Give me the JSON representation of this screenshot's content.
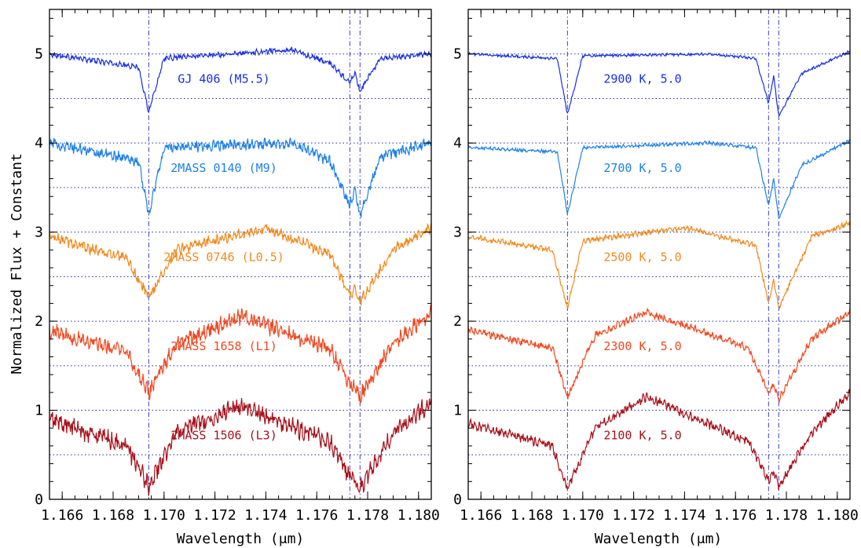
{
  "chart_data": [
    {
      "type": "line",
      "panel": "left",
      "xlabel": "Wavelength (μm)",
      "ylabel": "Normalized Flux + Constant",
      "xlim": [
        1.1655,
        1.1805
      ],
      "ylim": [
        0,
        5.5
      ],
      "xticks": [
        "1.166",
        "1.168",
        "1.170",
        "1.172",
        "1.174",
        "1.176",
        "1.178",
        "1.180"
      ],
      "yticks": [
        "0",
        "1",
        "2",
        "3",
        "4",
        "5"
      ],
      "grid": false,
      "reference_lines": {
        "vertical_dashdot_um": [
          1.1694,
          1.1773,
          1.1777
        ],
        "horizontal_dotted_levels": [
          0.5,
          1.0,
          1.5,
          2.0,
          2.5,
          3.0,
          3.5,
          4.0,
          4.5,
          5.0
        ]
      },
      "series": [
        {
          "name": "GJ 406 (M5.5)",
          "color": "#1a2fe0",
          "offset": 4.0,
          "continuum": 5.0,
          "noise": 0.03,
          "x": [
            1.1655,
            1.169,
            1.1694,
            1.17,
            1.175,
            1.1765,
            1.1773,
            1.1775,
            1.1777,
            1.1785,
            1.1805
          ],
          "y": [
            5.0,
            4.85,
            4.35,
            4.95,
            5.05,
            4.9,
            4.68,
            4.78,
            4.58,
            4.95,
            5.0
          ]
        },
        {
          "name": "2MASS 0140 (M9)",
          "color": "#1f80e8",
          "offset": 3.0,
          "continuum": 4.0,
          "noise": 0.06,
          "x": [
            1.1655,
            1.169,
            1.1694,
            1.17,
            1.175,
            1.1765,
            1.1773,
            1.1775,
            1.1777,
            1.1785,
            1.1805
          ],
          "y": [
            4.0,
            3.8,
            3.2,
            3.95,
            4.0,
            3.8,
            3.3,
            3.5,
            3.18,
            3.85,
            4.0
          ]
        },
        {
          "name": "2MASS 0746 (L0.5)",
          "color": "#f08a1e",
          "offset": 2.0,
          "continuum": 3.0,
          "noise": 0.06,
          "x": [
            1.1655,
            1.1685,
            1.1694,
            1.1705,
            1.174,
            1.1765,
            1.1773,
            1.1775,
            1.1777,
            1.179,
            1.1805
          ],
          "y": [
            2.95,
            2.7,
            2.27,
            2.8,
            3.05,
            2.75,
            2.3,
            2.35,
            2.22,
            2.8,
            3.05
          ]
        },
        {
          "name": "2MASS 1658 (L1)",
          "color": "#f04820",
          "offset": 1.0,
          "continuum": 2.0,
          "noise": 0.09,
          "x": [
            1.1655,
            1.1685,
            1.1694,
            1.1705,
            1.173,
            1.1765,
            1.1773,
            1.1775,
            1.1777,
            1.179,
            1.1805
          ],
          "y": [
            1.9,
            1.65,
            1.2,
            1.75,
            2.05,
            1.7,
            1.3,
            1.28,
            1.15,
            1.75,
            2.1
          ]
        },
        {
          "name": "2MASS 1506 (L3)",
          "color": "#a8101a",
          "offset": 0.0,
          "continuum": 1.0,
          "noise": 0.1,
          "x": [
            1.1655,
            1.1685,
            1.1694,
            1.1705,
            1.173,
            1.1765,
            1.1773,
            1.1775,
            1.1777,
            1.179,
            1.1805
          ],
          "y": [
            0.9,
            0.6,
            0.15,
            0.75,
            1.05,
            0.65,
            0.25,
            0.2,
            0.12,
            0.75,
            1.1
          ]
        }
      ]
    },
    {
      "type": "line",
      "panel": "right",
      "xlabel": "Wavelength (μm)",
      "ylabel": "",
      "xlim": [
        1.1655,
        1.1805
      ],
      "ylim": [
        0,
        5.5
      ],
      "xticks": [
        "1.166",
        "1.168",
        "1.170",
        "1.172",
        "1.174",
        "1.176",
        "1.178",
        "1.180"
      ],
      "yticks": [
        "0",
        "1",
        "2",
        "3",
        "4",
        "5"
      ],
      "grid": false,
      "reference_lines": {
        "vertical_dashdot_um": [
          1.1694,
          1.1773,
          1.1777
        ],
        "horizontal_dotted_levels": [
          0.5,
          1.0,
          1.5,
          2.0,
          2.5,
          3.0,
          3.5,
          4.0,
          4.5,
          5.0
        ]
      },
      "series": [
        {
          "name": "2900 K, 5.0",
          "color": "#1a2fe0",
          "offset": 4.0,
          "continuum": 5.0,
          "noise": 0.015,
          "x": [
            1.1655,
            1.169,
            1.1694,
            1.17,
            1.175,
            1.1768,
            1.1773,
            1.1775,
            1.1777,
            1.1786,
            1.1805
          ],
          "y": [
            5.0,
            4.95,
            4.32,
            4.98,
            5.0,
            4.95,
            4.45,
            4.75,
            4.3,
            4.78,
            5.03
          ]
        },
        {
          "name": "2700 K, 5.0",
          "color": "#1f80e8",
          "offset": 3.0,
          "continuum": 4.0,
          "noise": 0.02,
          "x": [
            1.1655,
            1.169,
            1.1694,
            1.17,
            1.175,
            1.1768,
            1.1773,
            1.1775,
            1.1777,
            1.1786,
            1.1805
          ],
          "y": [
            3.95,
            3.9,
            3.2,
            3.95,
            4.0,
            3.95,
            3.3,
            3.6,
            3.15,
            3.75,
            4.03
          ]
        },
        {
          "name": "2500 K, 5.0",
          "color": "#f08a1e",
          "offset": 2.0,
          "continuum": 3.0,
          "noise": 0.03,
          "x": [
            1.1655,
            1.1688,
            1.1694,
            1.17,
            1.174,
            1.1768,
            1.1773,
            1.1775,
            1.1777,
            1.179,
            1.1805
          ],
          "y": [
            2.95,
            2.8,
            2.15,
            2.9,
            3.05,
            2.85,
            2.2,
            2.45,
            2.15,
            2.95,
            3.1
          ]
        },
        {
          "name": "2300 K, 5.0",
          "color": "#f04820",
          "offset": 1.0,
          "continuum": 2.0,
          "noise": 0.04,
          "x": [
            1.1655,
            1.1688,
            1.1694,
            1.1705,
            1.1725,
            1.1765,
            1.1773,
            1.1775,
            1.1777,
            1.179,
            1.1805
          ],
          "y": [
            1.9,
            1.7,
            1.15,
            1.85,
            2.1,
            1.7,
            1.2,
            1.3,
            1.12,
            1.8,
            2.1
          ]
        },
        {
          "name": "2100 K, 5.0",
          "color": "#a8101a",
          "offset": 0.0,
          "continuum": 1.0,
          "noise": 0.05,
          "x": [
            1.1655,
            1.1688,
            1.1694,
            1.1705,
            1.1725,
            1.1765,
            1.1773,
            1.1775,
            1.1777,
            1.179,
            1.1805
          ],
          "y": [
            0.85,
            0.6,
            0.12,
            0.8,
            1.15,
            0.65,
            0.22,
            0.3,
            0.15,
            0.75,
            1.2
          ]
        }
      ]
    }
  ]
}
